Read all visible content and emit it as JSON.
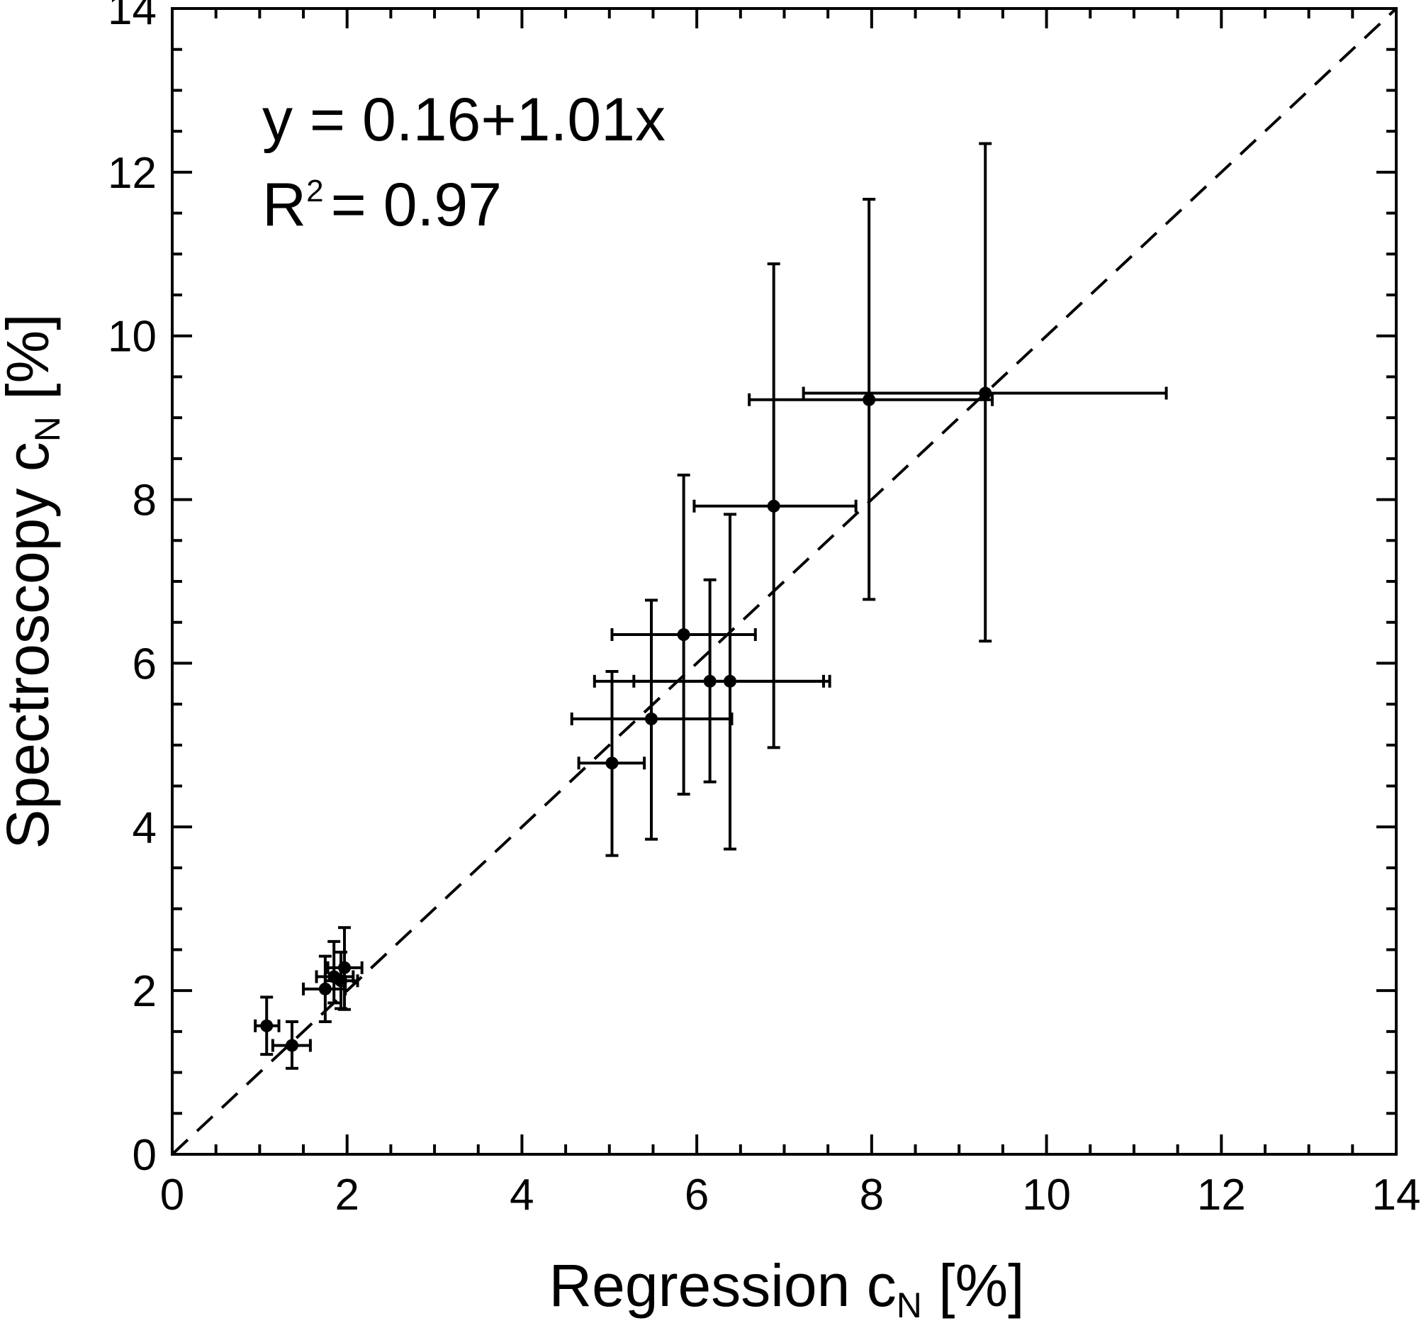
{
  "chart_data": {
    "type": "scatter",
    "xlabel": {
      "main": "Regression c",
      "sub": "N",
      "unit": " [%]"
    },
    "ylabel": {
      "main": "Spectroscopy c",
      "sub": "N",
      "unit": " [%]"
    },
    "xlim": [
      0,
      14
    ],
    "ylim": [
      0,
      14
    ],
    "xticks": [
      "0",
      "2",
      "4",
      "6",
      "8",
      "10",
      "12",
      "14"
    ],
    "yticks": [
      "0",
      "2",
      "4",
      "6",
      "8",
      "10",
      "12",
      "14"
    ],
    "minor_tick_step": 0.5,
    "grid": false,
    "annotation": {
      "equation": "y = 0.16+1.01x",
      "r2_label": "R",
      "r2_sup": "2",
      "r2_value": "= 0.97"
    },
    "fit_line": {
      "intercept": 0,
      "slope": 1,
      "style": "dashed"
    },
    "points": [
      {
        "x": 1.08,
        "y": 1.57,
        "xerr": [
          0.95,
          1.22
        ],
        "yerr": [
          1.22,
          1.92
        ]
      },
      {
        "x": 1.37,
        "y": 1.33,
        "xerr": [
          1.15,
          1.58
        ],
        "yerr": [
          1.05,
          1.62
        ]
      },
      {
        "x": 1.75,
        "y": 2.02,
        "xerr": [
          1.5,
          1.98
        ],
        "yerr": [
          1.62,
          2.42
        ]
      },
      {
        "x": 1.85,
        "y": 2.17,
        "xerr": [
          1.65,
          2.07
        ],
        "yerr": [
          1.85,
          2.6
        ]
      },
      {
        "x": 1.93,
        "y": 2.12,
        "xerr": [
          1.75,
          2.12
        ],
        "yerr": [
          1.78,
          2.47
        ]
      },
      {
        "x": 1.97,
        "y": 2.28,
        "xerr": [
          1.78,
          2.17
        ],
        "yerr": [
          1.77,
          2.77
        ]
      },
      {
        "x": 5.03,
        "y": 4.78,
        "xerr": [
          4.65,
          5.4
        ],
        "yerr": [
          3.65,
          5.9
        ]
      },
      {
        "x": 5.48,
        "y": 5.32,
        "xerr": [
          4.57,
          6.4
        ],
        "yerr": [
          3.85,
          6.77
        ]
      },
      {
        "x": 5.85,
        "y": 6.35,
        "xerr": [
          5.03,
          6.67
        ],
        "yerr": [
          4.4,
          8.3
        ]
      },
      {
        "x": 6.15,
        "y": 5.78,
        "xerr": [
          4.83,
          7.45
        ],
        "yerr": [
          4.55,
          7.02
        ]
      },
      {
        "x": 6.38,
        "y": 5.78,
        "xerr": [
          5.28,
          7.52
        ],
        "yerr": [
          3.73,
          7.82
        ]
      },
      {
        "x": 6.88,
        "y": 7.92,
        "xerr": [
          5.97,
          7.82
        ],
        "yerr": [
          4.97,
          10.88
        ]
      },
      {
        "x": 7.97,
        "y": 9.22,
        "xerr": [
          6.6,
          9.38
        ],
        "yerr": [
          6.78,
          11.67
        ]
      },
      {
        "x": 9.3,
        "y": 9.3,
        "xerr": [
          7.22,
          11.37
        ],
        "yerr": [
          6.27,
          12.35
        ]
      }
    ]
  }
}
